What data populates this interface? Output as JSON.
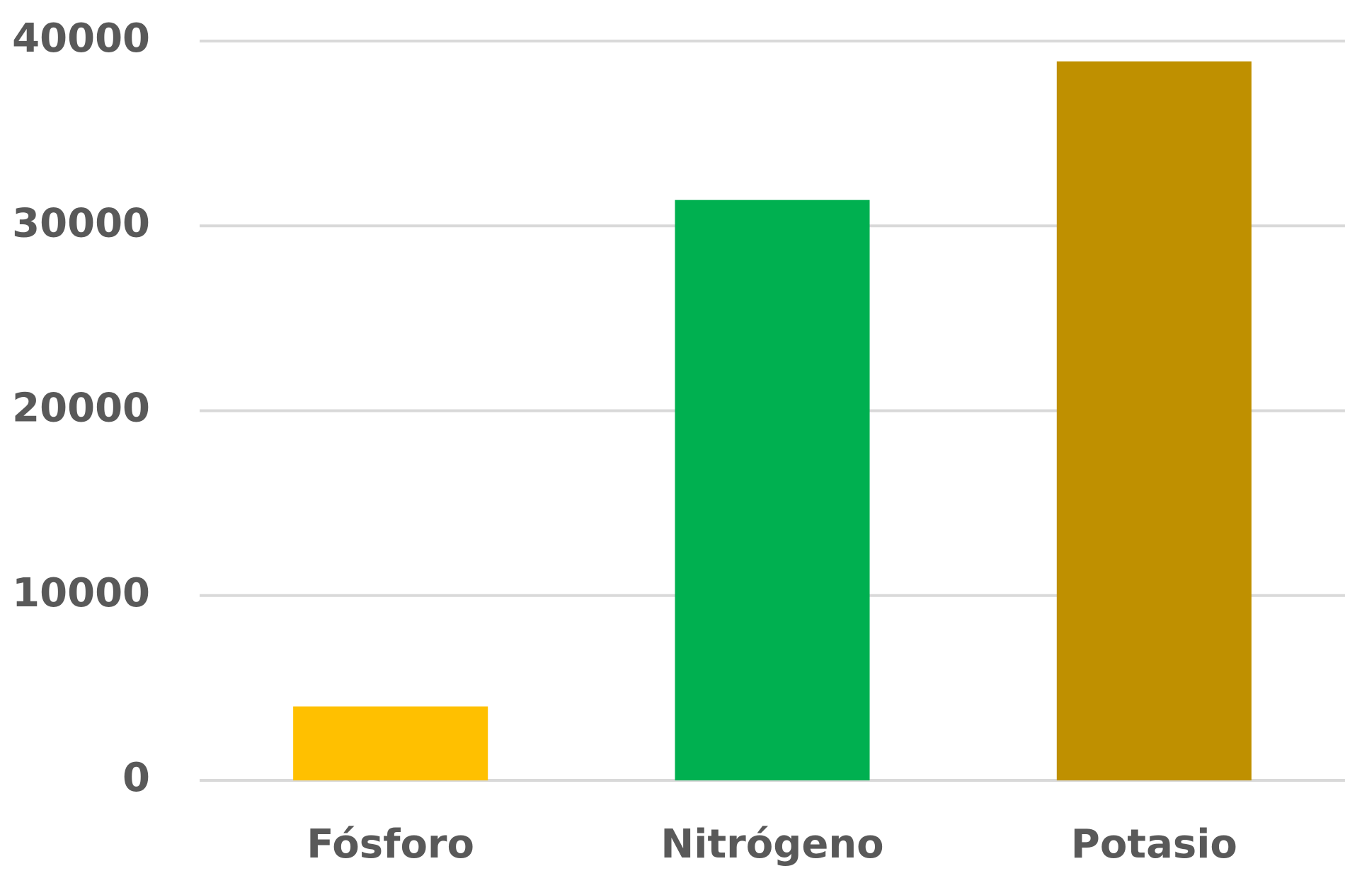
{
  "chart_data": {
    "type": "bar",
    "categories": [
      "Fósforo",
      "Nitrógeno",
      "Potasio"
    ],
    "values": [
      4000,
      31400,
      38900
    ],
    "colors": [
      "#FFC000",
      "#00B050",
      "#BF9000"
    ],
    "ylim": [
      0,
      40000
    ],
    "yticks": [
      0,
      10000,
      20000,
      30000,
      40000
    ],
    "grid": true
  }
}
